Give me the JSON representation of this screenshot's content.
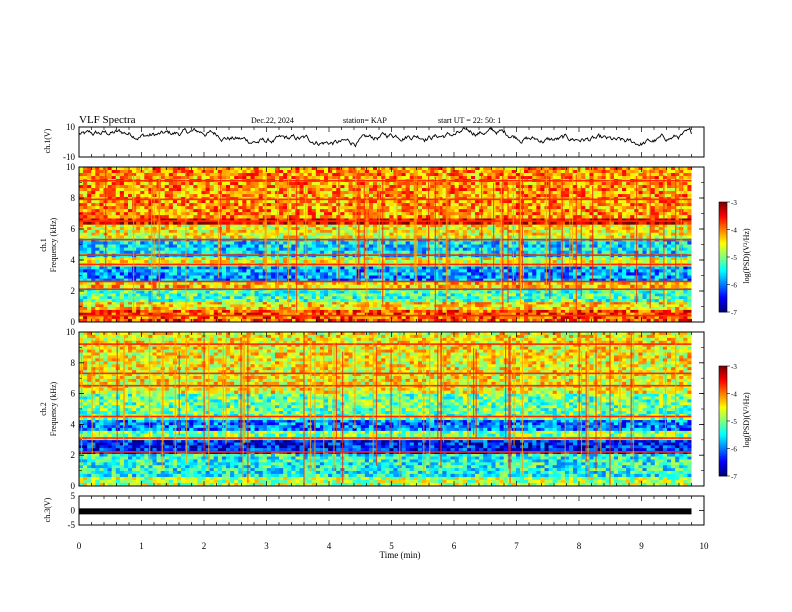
{
  "header": {
    "title": "VLF Spectra",
    "date": "Dec.22, 2024",
    "station": "station= KAP",
    "start_ut": "start  UT =   22: 50: 1"
  },
  "chart_data": [
    {
      "type": "line",
      "id": "ch1_waveform",
      "ylabel": "ch.1(V)",
      "ylim": [
        -10,
        10
      ],
      "yticks": [
        "10",
        "-10"
      ],
      "xlim": [
        0,
        9.8
      ],
      "approx_range": [
        -3,
        9
      ]
    },
    {
      "type": "heatmap",
      "id": "ch1_spectrogram",
      "ylabel": "ch.1\nFrequency (kHz)",
      "ylabel_line1": "ch.1",
      "ylabel_line2": "Frequency (kHz)",
      "ylim": [
        0,
        10
      ],
      "yticks": [
        "0",
        "2",
        "4",
        "6",
        "8",
        "10"
      ],
      "xlim": [
        0,
        9.8
      ],
      "colorbar": {
        "label": "log(PSD)(V²/Hz)",
        "range": [
          -7,
          -3
        ],
        "ticks": [
          "-3",
          "-4",
          "-5",
          "-6",
          "-7"
        ]
      },
      "bands": [
        {
          "f0": 0.0,
          "f1": 0.8,
          "level": -3.8
        },
        {
          "f0": 0.8,
          "f1": 1.3,
          "level": -4.4
        },
        {
          "f0": 1.3,
          "f1": 2.2,
          "level": -5.2
        },
        {
          "f0": 2.2,
          "f1": 2.6,
          "level": -4.3
        },
        {
          "f0": 2.6,
          "f1": 3.6,
          "level": -5.9
        },
        {
          "f0": 3.6,
          "f1": 4.2,
          "level": -4.6
        },
        {
          "f0": 4.2,
          "f1": 5.4,
          "level": -5.6
        },
        {
          "f0": 5.4,
          "f1": 6.3,
          "level": -4.5
        },
        {
          "f0": 6.3,
          "f1": 6.7,
          "level": -3.4
        },
        {
          "f0": 6.7,
          "f1": 10.0,
          "level": -4.1
        }
      ],
      "lines_khz": [
        0.4,
        2.1,
        2.6,
        3.7,
        4.3,
        5.3,
        6.5,
        7.9,
        9.1
      ]
    },
    {
      "type": "heatmap",
      "id": "ch2_spectrogram",
      "ylabel": "ch.2\nFrequency (kHz)",
      "ylabel_line1": "ch.2",
      "ylabel_line2": "Frequency (kHz)",
      "ylim": [
        0,
        10
      ],
      "yticks": [
        "0",
        "2",
        "4",
        "6",
        "8",
        "10"
      ],
      "xlim": [
        0,
        9.8
      ],
      "colorbar": {
        "label": "log(PSD)(V²/Hz)",
        "range": [
          -7,
          -3
        ],
        "ticks": [
          "-3",
          "-4",
          "-5",
          "-6",
          "-7"
        ]
      },
      "bands": [
        {
          "f0": 0.0,
          "f1": 0.6,
          "level": -4.8
        },
        {
          "f0": 0.6,
          "f1": 2.1,
          "level": -5.4
        },
        {
          "f0": 2.1,
          "f1": 3.0,
          "level": -6.4
        },
        {
          "f0": 3.0,
          "f1": 3.6,
          "level": -5.0
        },
        {
          "f0": 3.6,
          "f1": 4.3,
          "level": -6.0
        },
        {
          "f0": 4.3,
          "f1": 6.0,
          "level": -5.1
        },
        {
          "f0": 6.0,
          "f1": 10.0,
          "level": -4.5
        }
      ],
      "lines_khz": [
        2.2,
        3.1,
        4.5,
        6.5,
        7.3,
        9.2
      ]
    },
    {
      "type": "line",
      "id": "ch3_waveform",
      "ylabel": "ch.3(V)",
      "ylim": [
        -5,
        5
      ],
      "yticks": [
        "5",
        "0",
        "-5"
      ],
      "xlim": [
        0,
        9.8
      ],
      "constant_value": -0.3
    }
  ],
  "x_axis": {
    "label": "Time (min)",
    "range": [
      0,
      10
    ],
    "ticks": [
      "0",
      "1",
      "2",
      "3",
      "4",
      "5",
      "6",
      "7",
      "8",
      "9",
      "10"
    ]
  },
  "colors": {
    "axis": "#000000",
    "waveform": "#000000"
  }
}
